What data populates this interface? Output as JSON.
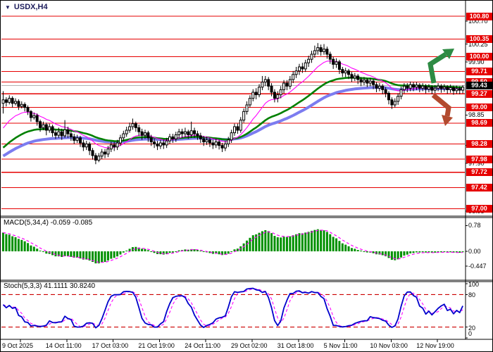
{
  "window": {
    "symbol_label": "USDX,H4",
    "title_color": "#1b1b5a"
  },
  "price_axis": {
    "ticks": [
      100.7,
      100.25,
      99.9,
      98.85,
      98.25,
      97.9,
      96.95
    ],
    "current_price": 99.43,
    "range": [
      96.85,
      100.85
    ]
  },
  "macd": {
    "label": "MACD(5,34,4) -0.059 -0.085",
    "params": [
      5,
      34,
      4
    ],
    "display_values": [
      "-0.059",
      "-0.085"
    ],
    "axis_ticks": [
      {
        "text": "0.78",
        "value": 0.78
      },
      {
        "text": "0.00",
        "value": 0
      },
      {
        "text": "-0.447",
        "value": -0.447
      }
    ]
  },
  "stoch": {
    "label": "Stoch(5,3,3) 41.1111 30.8240",
    "params": [
      5,
      3,
      3
    ],
    "display_values": [
      "41.1111",
      "30.8240"
    ],
    "axis_ticks": [
      100,
      80,
      20,
      0
    ],
    "levels": [
      80,
      20
    ]
  },
  "colors": {
    "level_line": "#e60000",
    "badge_bg": "#e60000",
    "badge_text": "#ffffff",
    "current_badge_bg": "#000000",
    "current_line": "#b3b3b3",
    "bull_body": "#ffffff",
    "bear_body": "#000000",
    "candle_outline": "#000000",
    "ma_fast": "#ff00ff",
    "ma_mid": "#008000",
    "ma_slow": "#7c7cf0",
    "macd_bar": "#009000",
    "macd_signal": "#ff00ff",
    "stoch_k": "#0000cc",
    "stoch_d": "#ff00ff",
    "stoch_level": "#cc0000",
    "arrow_up": "#2e8b44",
    "arrow_down": "#b24a2e"
  },
  "chart_data": {
    "type": "candlestick-with-indicators",
    "symbol": "USDX",
    "timeframe": "H4",
    "title": "USDX,H4",
    "legend_position": "none",
    "grid": false,
    "x_labels": [
      "9 Oct 2025",
      "14 Oct 11:00",
      "17 Oct 03:00",
      "21 Oct 19:00",
      "24 Oct 11:00",
      "29 Oct 02:00",
      "31 Oct 18:00",
      "5 Nov 11:00",
      "10 Nov 03:00",
      "12 Nov 19:00"
    ],
    "price_levels": [
      100.8,
      100.35,
      100.0,
      99.71,
      99.5,
      99.27,
      99.0,
      98.69,
      98.28,
      97.98,
      97.72,
      97.42,
      97.0
    ],
    "y_axis_ticks": [
      100.7,
      100.25,
      99.9,
      98.85,
      98.25,
      97.9,
      96.95
    ],
    "current_price": 99.43,
    "overlays": [
      {
        "name": "ma-fast",
        "color": "#ff00ff",
        "style": "solid",
        "width": 1
      },
      {
        "name": "ma-mid",
        "color": "#008000",
        "style": "solid",
        "width": 3
      },
      {
        "name": "ma-slow",
        "color": "#7c7cf0",
        "style": "solid",
        "width": 4
      }
    ],
    "annotations": [
      {
        "type": "arrow-up",
        "color": "#2e8b44",
        "area": "right-upper"
      },
      {
        "type": "arrow-down",
        "color": "#b24a2e",
        "area": "right-mid"
      }
    ],
    "indicator_panels": [
      {
        "name": "MACD",
        "label": "MACD(5,34,4) -0.059 -0.085",
        "axis": [
          0.78,
          0,
          -0.447
        ]
      },
      {
        "name": "Stochastic",
        "label": "Stoch(5,3,3) 41.1111 30.8240",
        "axis": [
          100,
          80,
          20,
          0
        ],
        "levels": [
          80,
          20
        ]
      }
    ],
    "candle_format": [
      "open",
      "high",
      "low",
      "close"
    ],
    "candles": [
      [
        99.08,
        99.32,
        98.88,
        99.15
      ],
      [
        99.15,
        99.2,
        99.02,
        99.1
      ],
      [
        99.1,
        99.24,
        99.06,
        99.18
      ],
      [
        99.18,
        99.22,
        99.0,
        99.08
      ],
      [
        99.08,
        99.18,
        99.04,
        99.12
      ],
      [
        99.12,
        99.16,
        98.95,
        99.02
      ],
      [
        99.02,
        99.12,
        98.98,
        99.06
      ],
      [
        99.06,
        99.1,
        98.92,
        99.0
      ],
      [
        99.0,
        99.04,
        98.85,
        98.92
      ],
      [
        98.92,
        98.95,
        98.72,
        98.8
      ],
      [
        98.8,
        98.9,
        98.76,
        98.84
      ],
      [
        98.84,
        98.88,
        98.64,
        98.72
      ],
      [
        98.72,
        98.76,
        98.52,
        98.6
      ],
      [
        98.6,
        98.72,
        98.55,
        98.66
      ],
      [
        98.66,
        98.7,
        98.45,
        98.55
      ],
      [
        98.55,
        98.68,
        98.5,
        98.62
      ],
      [
        98.62,
        98.66,
        98.42,
        98.5
      ],
      [
        98.5,
        98.56,
        98.38,
        98.45
      ],
      [
        98.45,
        98.6,
        98.4,
        98.52
      ],
      [
        98.52,
        98.58,
        98.36,
        98.44
      ],
      [
        98.44,
        98.75,
        98.4,
        98.56
      ],
      [
        98.56,
        98.62,
        98.4,
        98.48
      ],
      [
        98.48,
        98.54,
        98.34,
        98.42
      ],
      [
        98.42,
        98.48,
        98.28,
        98.35
      ],
      [
        98.35,
        98.46,
        98.3,
        98.4
      ],
      [
        98.4,
        98.44,
        98.22,
        98.3
      ],
      [
        98.3,
        98.36,
        98.14,
        98.22
      ],
      [
        98.22,
        98.34,
        98.16,
        98.28
      ],
      [
        98.28,
        98.32,
        98.06,
        98.15
      ],
      [
        98.15,
        98.2,
        97.97,
        98.05
      ],
      [
        98.05,
        98.1,
        97.88,
        97.96
      ],
      [
        97.96,
        98.1,
        97.92,
        98.04
      ],
      [
        98.04,
        98.18,
        97.98,
        98.12
      ],
      [
        98.12,
        98.18,
        98.0,
        98.08
      ],
      [
        98.08,
        98.24,
        98.02,
        98.18
      ],
      [
        98.18,
        98.32,
        98.12,
        98.26
      ],
      [
        98.26,
        98.32,
        98.14,
        98.22
      ],
      [
        98.22,
        98.36,
        98.16,
        98.3
      ],
      [
        98.3,
        98.46,
        98.24,
        98.4
      ],
      [
        98.4,
        98.54,
        98.34,
        98.48
      ],
      [
        98.48,
        98.62,
        98.42,
        98.55
      ],
      [
        98.55,
        98.7,
        98.5,
        98.62
      ],
      [
        98.62,
        98.78,
        98.56,
        98.68
      ],
      [
        98.68,
        98.72,
        98.52,
        98.6
      ],
      [
        98.6,
        98.66,
        98.44,
        98.52
      ],
      [
        98.52,
        98.58,
        98.36,
        98.45
      ],
      [
        98.45,
        98.56,
        98.38,
        98.5
      ],
      [
        98.5,
        98.54,
        98.32,
        98.4
      ],
      [
        98.4,
        98.46,
        98.24,
        98.32
      ],
      [
        98.32,
        98.38,
        98.2,
        98.28
      ],
      [
        98.28,
        98.34,
        98.16,
        98.24
      ],
      [
        98.24,
        98.36,
        98.18,
        98.3
      ],
      [
        98.3,
        98.36,
        98.18,
        98.26
      ],
      [
        98.26,
        98.4,
        98.2,
        98.34
      ],
      [
        98.34,
        98.48,
        98.28,
        98.42
      ],
      [
        98.42,
        98.48,
        98.3,
        98.38
      ],
      [
        98.38,
        98.52,
        98.32,
        98.46
      ],
      [
        98.46,
        98.58,
        98.4,
        98.52
      ],
      [
        98.52,
        98.58,
        98.4,
        98.48
      ],
      [
        98.48,
        98.6,
        98.42,
        98.52
      ],
      [
        98.52,
        98.56,
        98.38,
        98.46
      ],
      [
        98.46,
        98.72,
        98.4,
        98.54
      ],
      [
        98.54,
        98.6,
        98.4,
        98.48
      ],
      [
        98.48,
        98.54,
        98.36,
        98.44
      ],
      [
        98.44,
        98.5,
        98.3,
        98.38
      ],
      [
        98.38,
        98.44,
        98.24,
        98.32
      ],
      [
        98.32,
        98.42,
        98.26,
        98.36
      ],
      [
        98.36,
        98.4,
        98.22,
        98.3
      ],
      [
        98.3,
        98.36,
        98.18,
        98.26
      ],
      [
        98.26,
        98.38,
        98.2,
        98.32
      ],
      [
        98.32,
        98.36,
        98.17,
        98.25
      ],
      [
        98.25,
        98.3,
        98.12,
        98.2
      ],
      [
        98.2,
        98.34,
        98.14,
        98.28
      ],
      [
        98.28,
        98.42,
        98.22,
        98.36
      ],
      [
        98.36,
        98.56,
        98.3,
        98.5
      ],
      [
        98.5,
        98.68,
        98.44,
        98.62
      ],
      [
        98.62,
        98.68,
        98.48,
        98.55
      ],
      [
        98.55,
        98.81,
        98.5,
        98.75
      ],
      [
        98.75,
        98.98,
        98.7,
        98.92
      ],
      [
        98.92,
        99.12,
        98.86,
        99.05
      ],
      [
        99.05,
        99.24,
        99.0,
        99.18
      ],
      [
        99.18,
        99.36,
        99.12,
        99.3
      ],
      [
        99.3,
        99.38,
        99.16,
        99.25
      ],
      [
        99.25,
        99.46,
        99.2,
        99.4
      ],
      [
        99.4,
        99.62,
        99.34,
        99.5
      ],
      [
        99.5,
        99.62,
        99.42,
        99.55
      ],
      [
        99.55,
        99.6,
        99.34,
        99.42
      ],
      [
        99.42,
        99.48,
        99.22,
        99.3
      ],
      [
        99.3,
        99.36,
        99.1,
        99.18
      ],
      [
        99.18,
        99.32,
        99.1,
        99.25
      ],
      [
        99.25,
        99.42,
        99.18,
        99.35
      ],
      [
        99.35,
        99.54,
        99.28,
        99.48
      ],
      [
        99.48,
        99.54,
        99.34,
        99.42
      ],
      [
        99.42,
        99.62,
        99.36,
        99.55
      ],
      [
        99.55,
        99.72,
        99.48,
        99.65
      ],
      [
        99.65,
        99.8,
        99.58,
        99.72
      ],
      [
        99.72,
        99.86,
        99.64,
        99.8
      ],
      [
        99.8,
        99.88,
        99.68,
        99.76
      ],
      [
        99.76,
        99.94,
        99.7,
        99.88
      ],
      [
        99.88,
        100.02,
        99.8,
        99.95
      ],
      [
        99.95,
        100.12,
        99.88,
        100.05
      ],
      [
        100.05,
        100.22,
        99.98,
        100.12
      ],
      [
        100.12,
        100.27,
        100.04,
        100.18
      ],
      [
        100.18,
        100.24,
        100.02,
        100.1
      ],
      [
        100.1,
        100.25,
        100.04,
        100.15
      ],
      [
        100.15,
        100.2,
        99.96,
        100.05
      ],
      [
        100.05,
        100.1,
        99.86,
        99.95
      ],
      [
        99.95,
        100.0,
        99.76,
        99.85
      ],
      [
        99.85,
        99.97,
        99.78,
        99.9
      ],
      [
        99.9,
        99.94,
        99.66,
        99.75
      ],
      [
        99.75,
        99.8,
        99.6,
        99.68
      ],
      [
        99.68,
        99.78,
        99.6,
        99.72
      ],
      [
        99.72,
        99.76,
        99.56,
        99.65
      ],
      [
        99.65,
        99.7,
        99.5,
        99.58
      ],
      [
        99.58,
        99.68,
        99.52,
        99.62
      ],
      [
        99.62,
        99.66,
        99.46,
        99.55
      ],
      [
        99.55,
        99.6,
        99.42,
        99.5
      ],
      [
        99.5,
        99.6,
        99.44,
        99.54
      ],
      [
        99.54,
        99.58,
        99.4,
        99.48
      ],
      [
        99.48,
        99.58,
        99.42,
        99.52
      ],
      [
        99.52,
        99.56,
        99.36,
        99.45
      ],
      [
        99.45,
        99.5,
        99.3,
        99.38
      ],
      [
        99.38,
        99.48,
        99.32,
        99.42
      ],
      [
        99.42,
        99.46,
        99.26,
        99.35
      ],
      [
        99.35,
        99.4,
        99.2,
        99.28
      ],
      [
        99.28,
        99.32,
        99.06,
        99.15
      ],
      [
        99.15,
        99.2,
        98.97,
        99.05
      ],
      [
        99.05,
        99.18,
        99.0,
        99.12
      ],
      [
        99.12,
        99.28,
        99.05,
        99.22
      ],
      [
        99.22,
        99.41,
        99.16,
        99.35
      ],
      [
        99.35,
        99.48,
        99.28,
        99.42
      ],
      [
        99.42,
        99.48,
        99.3,
        99.38
      ],
      [
        99.38,
        99.51,
        99.32,
        99.45
      ],
      [
        99.45,
        99.5,
        99.32,
        99.4
      ],
      [
        99.4,
        99.5,
        99.34,
        99.44
      ],
      [
        99.44,
        99.48,
        99.3,
        99.38
      ],
      [
        99.38,
        99.48,
        99.32,
        99.42
      ],
      [
        99.42,
        99.46,
        99.28,
        99.36
      ],
      [
        99.36,
        99.46,
        99.3,
        99.4
      ],
      [
        99.4,
        99.44,
        99.26,
        99.34
      ],
      [
        99.34,
        99.44,
        99.28,
        99.38
      ],
      [
        99.38,
        99.48,
        99.32,
        99.42
      ],
      [
        99.42,
        99.46,
        99.29,
        99.37
      ],
      [
        99.37,
        99.46,
        99.31,
        99.4
      ],
      [
        99.4,
        99.44,
        99.27,
        99.35
      ],
      [
        99.35,
        99.45,
        99.29,
        99.39
      ],
      [
        99.39,
        99.43,
        99.25,
        99.33
      ],
      [
        99.33,
        99.43,
        99.27,
        99.37
      ],
      [
        99.37,
        99.42,
        99.26,
        99.34
      ],
      [
        99.34,
        99.44,
        99.28,
        99.4
      ]
    ]
  }
}
